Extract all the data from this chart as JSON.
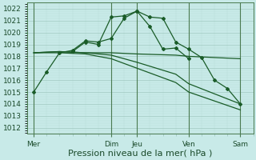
{
  "bg_color": "#c8eae8",
  "grid_major_color": "#a0c8c0",
  "grid_minor_color": "#b8ddd8",
  "line_color": "#1a5c28",
  "vline_color": "#4a7a50",
  "xlabel": "Pression niveau de la mer( hPa )",
  "xlabel_fontsize": 8,
  "ylim": [
    1011.5,
    1022.5
  ],
  "yticks": [
    1012,
    1013,
    1014,
    1015,
    1016,
    1017,
    1018,
    1019,
    1020,
    1021,
    1022
  ],
  "xtick_labels": [
    "Mer",
    "Dim",
    "Jeu",
    "Ven",
    "Sam"
  ],
  "xtick_positions": [
    0,
    36,
    48,
    72,
    96
  ],
  "xlim": [
    -3,
    102
  ],
  "vline_positions": [
    0,
    36,
    48,
    72,
    96
  ],
  "series1_x": [
    0,
    6,
    12,
    18,
    24,
    30,
    36,
    42,
    48,
    54,
    60,
    66,
    72,
    78,
    84,
    90,
    96
  ],
  "series1_y": [
    1015.0,
    1016.7,
    1018.3,
    1018.5,
    1019.3,
    1019.2,
    1019.5,
    1021.2,
    1021.8,
    1021.3,
    1021.2,
    1019.2,
    1018.6,
    1017.9,
    1016.0,
    1015.3,
    1014.0
  ],
  "series1b_x": [
    18,
    24,
    30,
    36,
    42,
    48,
    54,
    60,
    66,
    72
  ],
  "series1b_y": [
    1018.4,
    1019.2,
    1019.0,
    1021.3,
    1021.4,
    1021.8,
    1020.5,
    1018.6,
    1018.7,
    1017.8
  ],
  "series2_x": [
    0,
    12,
    24,
    36,
    48,
    66,
    72,
    96
  ],
  "series2_y": [
    1018.3,
    1018.4,
    1018.3,
    1018.3,
    1018.2,
    1018.1,
    1018.0,
    1017.8
  ],
  "series3_x": [
    0,
    12,
    24,
    36,
    48,
    66,
    72,
    96
  ],
  "series3_y": [
    1018.3,
    1018.4,
    1018.3,
    1018.1,
    1017.5,
    1016.5,
    1015.7,
    1014.0
  ],
  "series4_x": [
    0,
    12,
    24,
    36,
    48,
    66,
    72,
    96
  ],
  "series4_y": [
    1018.3,
    1018.3,
    1018.2,
    1017.8,
    1017.0,
    1015.8,
    1015.0,
    1013.5
  ]
}
